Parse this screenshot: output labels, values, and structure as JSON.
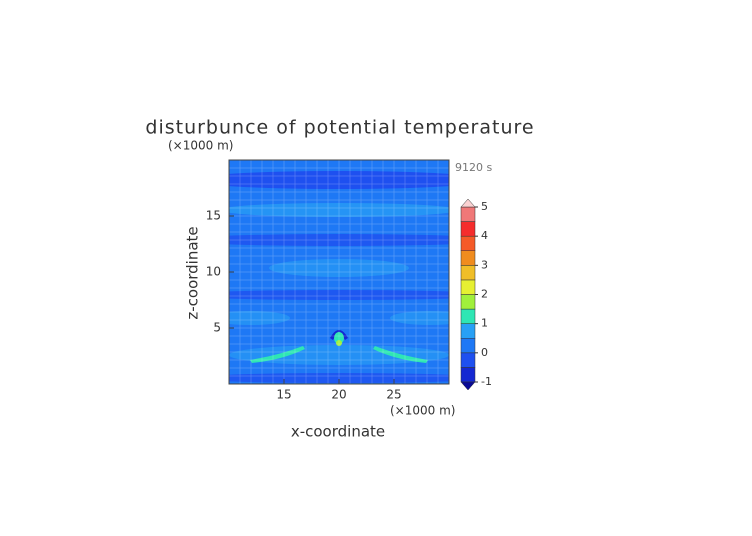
{
  "chart_data": {
    "type": "contour",
    "title": "disturbunce of potential temperature",
    "time_label": "9120 s",
    "x_label": "x-coordinate",
    "x_unit": "(×1000 m)",
    "y_label": "z-coordinate",
    "y_unit": "(×1000 m)",
    "xlim": [
      10,
      30
    ],
    "xticks": [
      15,
      20,
      25
    ],
    "ylim": [
      0,
      20
    ],
    "yticks": [
      5,
      10,
      15
    ],
    "grid": true,
    "colorbar": {
      "ticks": [
        -1,
        0,
        1,
        2,
        3,
        4,
        5
      ],
      "levels": [
        -1,
        -0.5,
        0,
        0.5,
        1,
        1.5,
        2,
        2.5,
        3,
        3.5,
        4,
        4.5,
        5
      ],
      "colors": [
        "#1428d2",
        "#1e50f0",
        "#1e78f5",
        "#28a0f5",
        "#2ee6b4",
        "#a0f03c",
        "#e6f032",
        "#f0be28",
        "#f08c1e",
        "#f55a28",
        "#f52d2d",
        "#f07878",
        "#f5b4b4"
      ],
      "under_color": "#0a0a96",
      "over_color": "#fad2d2"
    }
  }
}
